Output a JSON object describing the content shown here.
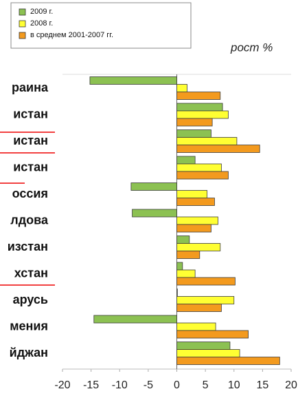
{
  "chart_data": {
    "type": "hbar",
    "unit_label": "рост %",
    "categories": [
      "раина",
      "истан",
      "истан",
      "истан",
      "оссия",
      "лдова",
      "изстан",
      "хстан",
      "арусь",
      "мения",
      "йджан"
    ],
    "series": [
      {
        "name": "2009 г.",
        "color": "#8cc152",
        "values": [
          -15.2,
          8,
          6,
          3.2,
          -8,
          -7.8,
          2.2,
          1,
          0.1,
          -14.5,
          9.3
        ]
      },
      {
        "name": "2008 г.",
        "color": "#ffff33",
        "values": [
          1.8,
          9,
          10.5,
          7.8,
          5.3,
          7.2,
          7.6,
          3.2,
          10,
          6.8,
          11
        ]
      },
      {
        "name": "в среднем  2001-2007 гг.",
        "color": "#f39a1e",
        "values": [
          7.6,
          6.2,
          14.5,
          9,
          6.6,
          6,
          4,
          10.2,
          7.8,
          12.5,
          18
        ]
      }
    ],
    "xlim": [
      -20,
      20
    ],
    "xticks": [
      -20,
      -15,
      -10,
      -5,
      0,
      5,
      10,
      15,
      20
    ],
    "grid": false
  }
}
